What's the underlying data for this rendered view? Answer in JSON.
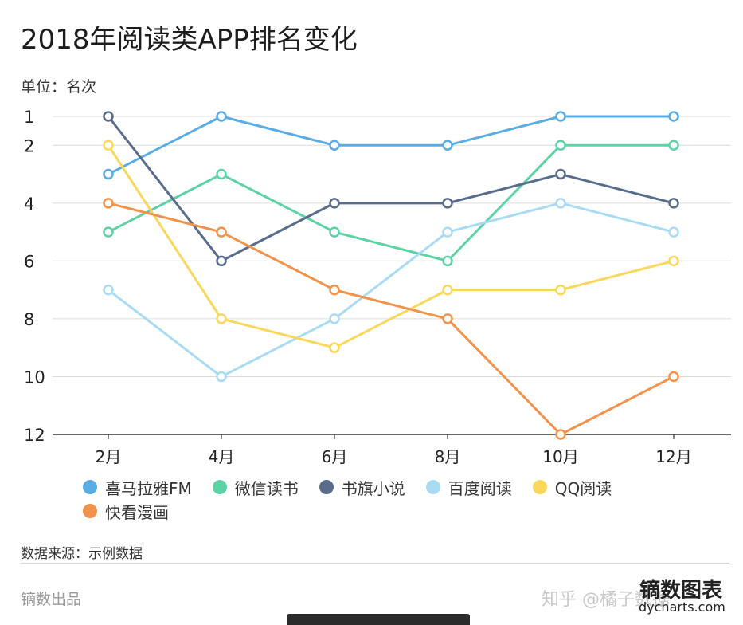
{
  "title": "2018年阅读类APP排名变化",
  "unit": "单位：名次",
  "chart_data": {
    "type": "line",
    "title": "2018年阅读类APP排名变化",
    "ylabel": "单位：名次",
    "categories": [
      "2月",
      "4月",
      "6月",
      "8月",
      "10月",
      "12月"
    ],
    "y_ticks": [
      1,
      2,
      4,
      6,
      8,
      10,
      12
    ],
    "ylim": [
      12,
      1
    ],
    "y_inverted": true,
    "grid": true,
    "legend_position": "bottom",
    "series": [
      {
        "name": "喜马拉雅FM",
        "color": "#5aace4",
        "values": [
          3,
          1,
          2,
          2,
          1,
          1
        ]
      },
      {
        "name": "微信读书",
        "color": "#5dd3a5",
        "values": [
          5,
          3,
          5,
          6,
          2,
          2
        ]
      },
      {
        "name": "书旗小说",
        "color": "#586c8c",
        "values": [
          1,
          6,
          4,
          4,
          3,
          4
        ]
      },
      {
        "name": "百度阅读",
        "color": "#a9dcf3",
        "values": [
          7,
          10,
          8,
          5,
          4,
          5
        ]
      },
      {
        "name": "QQ阅读",
        "color": "#f9d85c",
        "values": [
          2,
          8,
          9,
          7,
          7,
          6
        ]
      },
      {
        "name": "快看漫画",
        "color": "#f1934c",
        "values": [
          4,
          5,
          7,
          8,
          12,
          10
        ]
      }
    ]
  },
  "source": "数据来源：示例数据",
  "footer": {
    "left": "镝数出品",
    "zhihu": "知乎 @橘子数据",
    "brand": "镝数图表",
    "domain": "dycharts.com"
  }
}
